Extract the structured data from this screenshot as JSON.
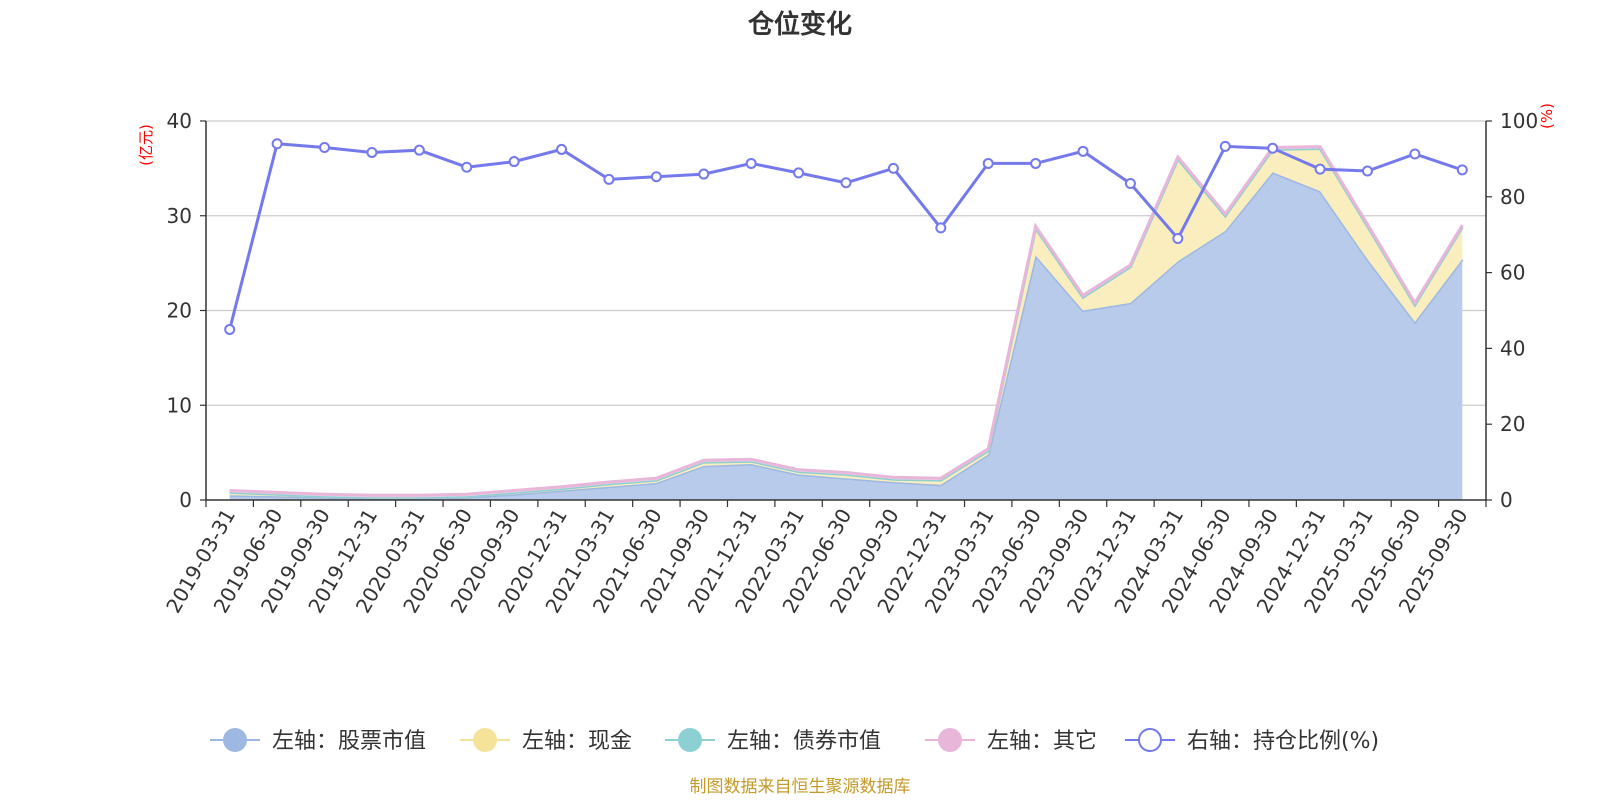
{
  "chart_data": {
    "type": "area",
    "title": "仓位变化",
    "left_axis_unit": "(亿元)",
    "right_axis_unit": "(%)",
    "left_ylim": [
      0,
      40
    ],
    "left_ticks": [
      0,
      10,
      20,
      30,
      40
    ],
    "right_ylim": [
      0,
      100
    ],
    "right_ticks": [
      0,
      20,
      40,
      60,
      80,
      100
    ],
    "grid": true,
    "legend_position": "bottom",
    "categories": [
      "2019-03-31",
      "2019-06-30",
      "2019-09-30",
      "2019-12-31",
      "2020-03-31",
      "2020-06-30",
      "2020-09-30",
      "2020-12-31",
      "2021-03-31",
      "2021-06-30",
      "2021-09-30",
      "2021-12-31",
      "2022-03-31",
      "2022-06-30",
      "2022-09-30",
      "2022-12-31",
      "2023-03-31",
      "2023-06-30",
      "2023-09-30",
      "2023-12-31",
      "2024-03-31",
      "2024-06-30",
      "2024-09-30",
      "2024-12-31",
      "2025-03-31",
      "2025-06-30",
      "2025-09-30"
    ],
    "stacked_series": [
      {
        "name": "左轴：股票市值",
        "color": "#9db8e2",
        "fill": "#b8cbea",
        "values": [
          0.5,
          0.4,
          0.3,
          0.2,
          0.2,
          0.3,
          0.6,
          1.0,
          1.4,
          1.8,
          3.6,
          3.8,
          2.7,
          2.3,
          1.9,
          1.6,
          4.8,
          25.8,
          20.0,
          20.8,
          25.2,
          28.4,
          34.6,
          32.6,
          25.4,
          18.8,
          25.4
        ]
      },
      {
        "name": "左轴：现金",
        "color": "#f5e39a",
        "fill": "#faeebf",
        "values": [
          0.3,
          0.2,
          0.1,
          0.1,
          0.1,
          0.1,
          0.2,
          0.2,
          0.3,
          0.3,
          0.4,
          0.3,
          0.3,
          0.4,
          0.3,
          0.5,
          0.4,
          2.9,
          1.4,
          3.8,
          10.8,
          1.6,
          2.4,
          4.5,
          3.5,
          1.8,
          3.4
        ]
      },
      {
        "name": "左轴：债券市值",
        "color": "#8dd0d4",
        "fill": "#b9e3e6",
        "values": [
          0,
          0,
          0,
          0,
          0,
          0,
          0,
          0,
          0,
          0,
          0,
          0,
          0,
          0,
          0,
          0,
          0,
          0,
          0,
          0,
          0,
          0,
          0,
          0,
          0,
          0,
          0
        ]
      },
      {
        "name": "左轴：其它",
        "color": "#e8b6d9",
        "fill": "#f2d4e9",
        "values": [
          0.2,
          0.2,
          0.2,
          0.2,
          0.2,
          0.2,
          0.2,
          0.2,
          0.2,
          0.2,
          0.2,
          0.2,
          0.2,
          0.2,
          0.2,
          0.2,
          0.2,
          0.2,
          0.2,
          0.2,
          0.2,
          0.2,
          0.2,
          0.2,
          0.2,
          0.2,
          0.2
        ]
      }
    ],
    "line_series": {
      "name": "右轴：持仓比例(%)",
      "color": "#7479ec",
      "values": [
        45.0,
        94.0,
        93.0,
        91.7,
        92.3,
        87.8,
        89.3,
        92.5,
        84.6,
        85.3,
        86.0,
        88.8,
        86.3,
        83.7,
        87.5,
        71.8,
        88.8,
        88.8,
        92.0,
        83.5,
        69.0,
        93.3,
        92.8,
        87.3,
        86.8,
        91.3,
        87.1
      ]
    }
  },
  "source_note": "制图数据来自恒生聚源数据库"
}
